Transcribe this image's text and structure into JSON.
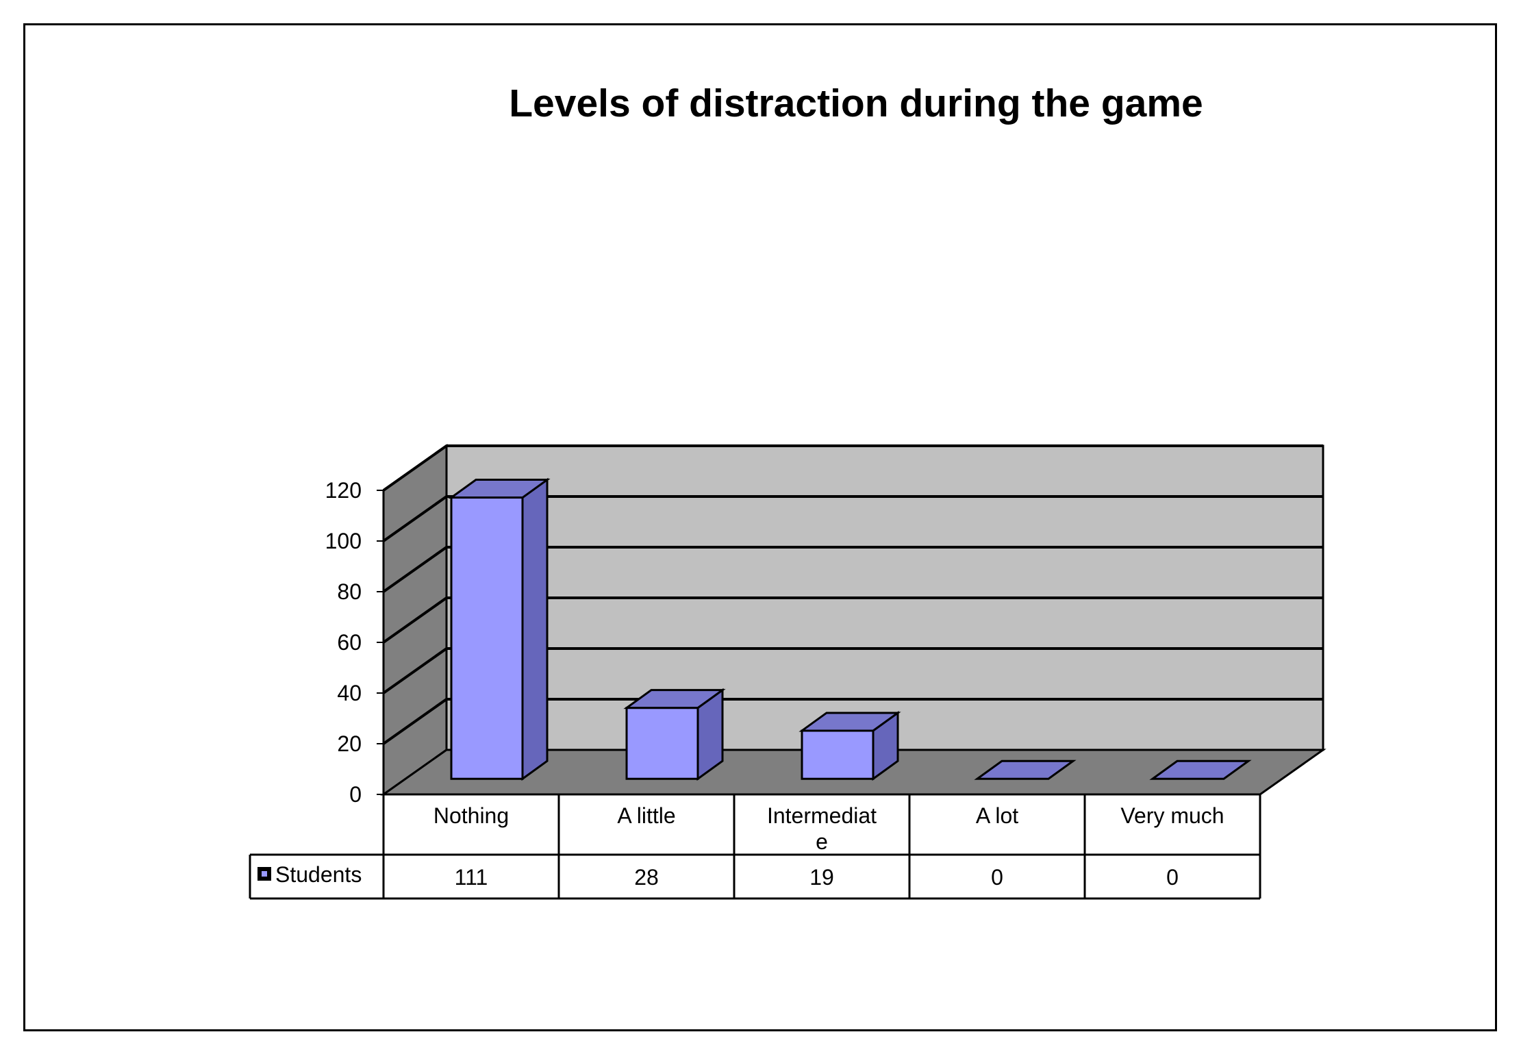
{
  "chart_data": {
    "type": "bar",
    "title": "Levels of distraction during the game",
    "categories": [
      "Nothing",
      "A little",
      "Intermediate",
      "A lot",
      "Very much"
    ],
    "category_labels": [
      [
        "Nothing"
      ],
      [
        "A little"
      ],
      [
        "Intermediat",
        "e"
      ],
      [
        "A lot"
      ],
      [
        "Very much"
      ]
    ],
    "series": [
      {
        "name": "Students",
        "values": [
          111,
          28,
          19,
          0,
          0
        ]
      }
    ],
    "ylim": [
      0,
      120
    ],
    "yticks": [
      0,
      20,
      40,
      60,
      80,
      100,
      120
    ],
    "grid": true,
    "style": "3d",
    "data_table": true,
    "colors": {
      "bar_front": "#9999ff",
      "bar_side": "#6666bb",
      "bar_top": "#7777cc",
      "back_wall": "#c0c0c0",
      "side_wall": "#808080",
      "floor": "#7f7f7f"
    }
  }
}
